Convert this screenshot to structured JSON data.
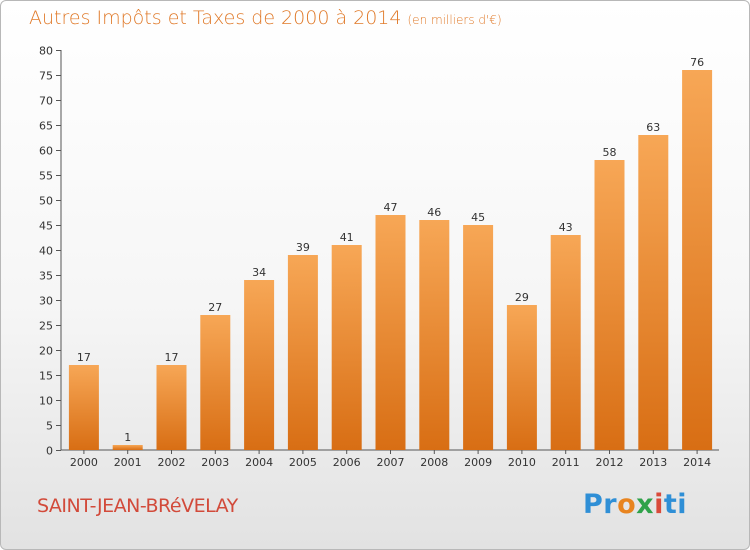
{
  "title": "Autres Impôts et Taxes de 2000 à 2014",
  "subtitle": "(en milliers d'€)",
  "commune": "SAINT-JEAN-BRéVELAY",
  "logo": {
    "p1": "Pr",
    "p2": "o",
    "p3": "x",
    "p4": "i",
    "p5": "ti"
  },
  "colors": {
    "title": "#e07a2a",
    "commune": "#d24a3a",
    "bar_top": "#f7a756",
    "bar_bottom": "#d86e14"
  },
  "chart_data": {
    "type": "bar",
    "categories": [
      "2000",
      "2001",
      "2002",
      "2003",
      "2004",
      "2005",
      "2006",
      "2007",
      "2008",
      "2009",
      "2010",
      "2011",
      "2012",
      "2013",
      "2014"
    ],
    "values": [
      17,
      1,
      17,
      27,
      34,
      39,
      41,
      47,
      46,
      45,
      29,
      43,
      58,
      63,
      76
    ],
    "ylim": [
      0,
      80
    ],
    "yticks": [
      0,
      5,
      10,
      15,
      20,
      25,
      30,
      35,
      40,
      45,
      50,
      55,
      60,
      65,
      70,
      75,
      80
    ],
    "grid": false,
    "xlabel": "",
    "ylabel": ""
  }
}
